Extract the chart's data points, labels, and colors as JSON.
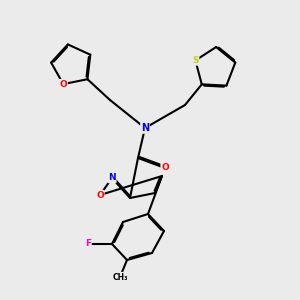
{
  "bg_color": "#ebebeb",
  "atom_colors": {
    "O": "#ff0000",
    "N": "#0000ff",
    "S": "#cccc00",
    "F": "#ff00cc",
    "C": "#000000"
  },
  "bond_color": "#000000",
  "bond_width": 1.5,
  "font_size_atom": 7
}
